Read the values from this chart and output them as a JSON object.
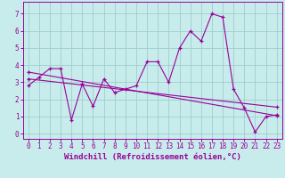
{
  "title": "",
  "xlabel": "Windchill (Refroidissement éolien,°C)",
  "ylabel": "",
  "xlim": [
    -0.5,
    23.5
  ],
  "ylim": [
    -0.3,
    7.7
  ],
  "xticks": [
    0,
    1,
    2,
    3,
    4,
    5,
    6,
    7,
    8,
    9,
    10,
    11,
    12,
    13,
    14,
    15,
    16,
    17,
    18,
    19,
    20,
    21,
    22,
    23
  ],
  "yticks": [
    0,
    1,
    2,
    3,
    4,
    5,
    6,
    7
  ],
  "bg_color": "#c8ecec",
  "grid_color": "#9dcece",
  "line_color": "#990099",
  "series1_x": [
    0,
    1,
    2,
    3,
    4,
    5,
    6,
    7,
    8,
    9,
    10,
    11,
    12,
    13,
    14,
    15,
    16,
    17,
    18,
    19,
    20,
    21,
    22,
    23
  ],
  "series1_y": [
    2.8,
    3.3,
    3.8,
    3.8,
    0.8,
    2.9,
    1.6,
    3.2,
    2.4,
    2.6,
    2.8,
    4.2,
    4.2,
    3.0,
    5.0,
    6.0,
    5.4,
    7.0,
    6.8,
    2.6,
    1.5,
    0.1,
    1.0,
    1.1
  ],
  "series2_x": [
    0,
    23
  ],
  "series2_y": [
    3.6,
    1.05
  ],
  "series3_x": [
    0,
    23
  ],
  "series3_y": [
    3.2,
    1.55
  ],
  "tick_fontsize": 5.5,
  "xlabel_fontsize": 6.5
}
